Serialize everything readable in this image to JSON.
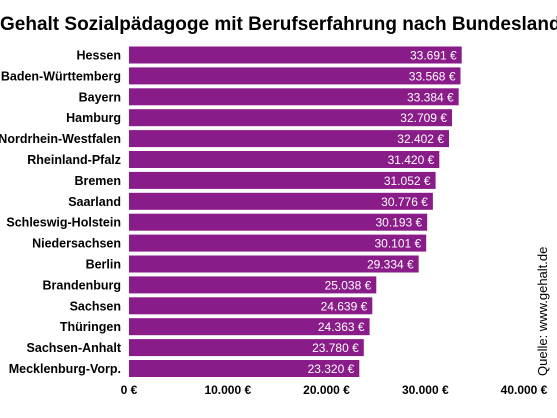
{
  "chart_data": {
    "type": "bar",
    "orientation": "horizontal",
    "title": "Gehalt Sozialpädagoge mit Berufserfahrung nach Bundesland",
    "source": "Quelle: www.gehalt.de",
    "categories": [
      "Hessen",
      "Baden-Württemberg",
      "Bayern",
      "Hamburg",
      "Nordrhein-Westfalen",
      "Rheinland-Pfalz",
      "Bremen",
      "Saarland",
      "Schleswig-Holstein",
      "Niedersachsen",
      "Berlin",
      "Brandenburg",
      "Sachsen",
      "Thüringen",
      "Sachsen-Anhalt",
      "Mecklenburg-Vorp."
    ],
    "values": [
      33691,
      33568,
      33384,
      32709,
      32402,
      31420,
      31052,
      30776,
      30193,
      30101,
      29334,
      25038,
      24639,
      24363,
      23780,
      23320
    ],
    "value_labels": [
      "33.691 €",
      "33.568 €",
      "33.384 €",
      "32.709 €",
      "32.402 €",
      "31.420 €",
      "31.052 €",
      "30.776 €",
      "30.193 €",
      "30.101 €",
      "29.334 €",
      "25.038 €",
      "24.639 €",
      "24.363 €",
      "23.780 €",
      "23.320 €"
    ],
    "xlim": [
      0,
      40000
    ],
    "xticks": [
      0,
      10000,
      20000,
      30000,
      40000
    ],
    "xtick_labels": [
      "0 €",
      "10.000 €",
      "20.000 €",
      "30.000 €",
      "40.000 €"
    ],
    "xlabel": "",
    "ylabel": "",
    "grid": false,
    "legend": false,
    "bar_color": "#8a1c8a"
  }
}
